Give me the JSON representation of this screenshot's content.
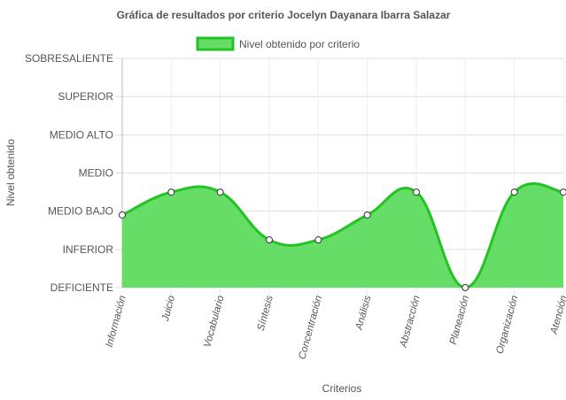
{
  "chart_data": {
    "type": "area",
    "title": "Gráfica de resultados por criterio Jocelyn Dayanara Ibarra Salazar",
    "xlabel": "Criterios",
    "ylabel": "Nivel obtenido",
    "legend_position": "top-center",
    "grid": true,
    "y_levels": [
      "DEFICIENTE",
      "INFERIOR",
      "MEDIO BAJO",
      "MEDIO",
      "MEDIO ALTO",
      "SUPERIOR",
      "SOBRESALIENTE"
    ],
    "ylim": [
      0,
      6
    ],
    "categories": [
      "Información",
      "Juicio",
      "Vocabulario",
      "Síntesis",
      "Concentración",
      "Análisis",
      "Abstracción",
      "Planeación",
      "Organización",
      "Atención"
    ],
    "series": [
      {
        "name": "Nivel obtenido por criterio",
        "values": [
          1.9,
          2.5,
          2.5,
          1.25,
          1.25,
          1.9,
          2.5,
          0,
          2.5,
          2.5
        ],
        "fill_color": "#66dd66",
        "line_color": "#22c322"
      }
    ]
  }
}
